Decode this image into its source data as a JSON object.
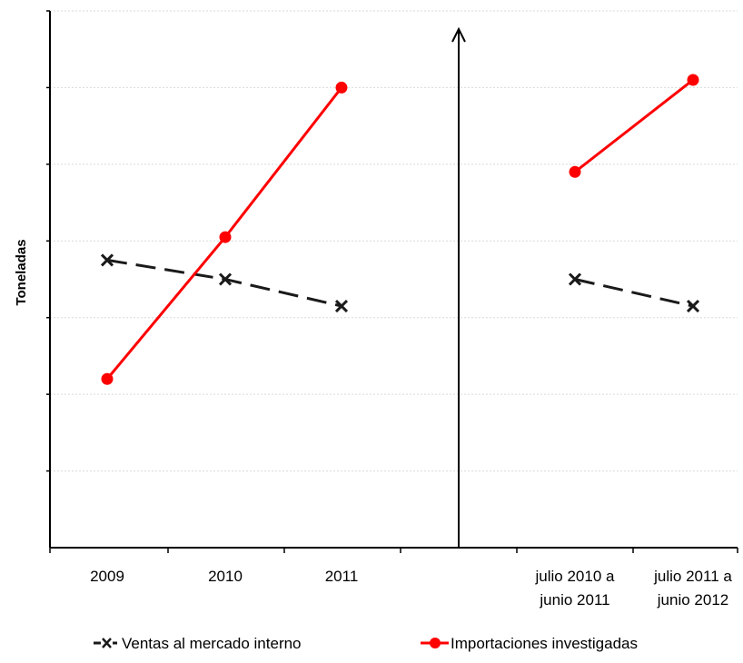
{
  "chart_data": {
    "type": "line",
    "ylabel": "Toneladas",
    "xlabel": "",
    "title": "",
    "grid": true,
    "legend": "bottom",
    "y_tick_labels": false,
    "ylim": [
      0,
      7
    ],
    "categories": [
      "2009",
      "2010",
      "2011",
      "",
      "julio 2010 a|junio 2011",
      "julio 2011 a|junio 2012"
    ],
    "panels": [
      {
        "name": "annual",
        "category_indices": [
          0,
          1,
          2
        ]
      },
      {
        "name": "period",
        "category_indices": [
          4,
          5
        ]
      }
    ],
    "series": [
      {
        "name": "Ventas al mercado interno",
        "style": "dashed",
        "marker": "x",
        "color": "#1a1a1a",
        "values": [
          3.75,
          3.5,
          3.15,
          null,
          3.5,
          3.15
        ]
      },
      {
        "name": "Importaciones investigadas",
        "style": "solid",
        "marker": "circle",
        "color": "#ff0000",
        "values": [
          2.2,
          4.05,
          6.0,
          null,
          4.9,
          6.1
        ]
      }
    ]
  }
}
